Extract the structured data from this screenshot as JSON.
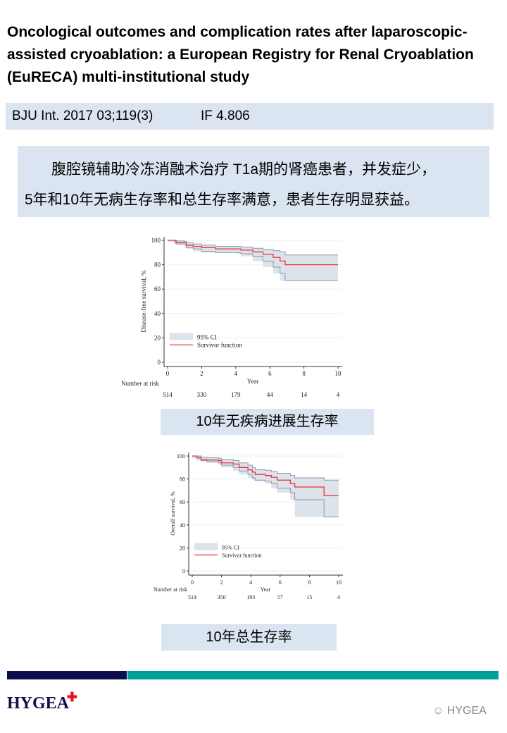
{
  "title": "Oncological outcomes and complication rates after laparoscopic-assisted cryoablation: a European Registry for Renal Cryoablation (EuRECA) multi-institutional study",
  "citation": {
    "journal": "BJU Int. 2017 03;119(3)",
    "impact_factor": "IF 4.806"
  },
  "summary": {
    "line1": "腹腔镜辅助冷冻消融术治疗 T1a期的肾癌患者，并发症少，",
    "line2": "5年和10年无病生存率和总生存率满意，患者生存明显获益。"
  },
  "chart_data": [
    {
      "type": "line",
      "ylabel": "Disease-free survival, %",
      "xlabel": "Year",
      "xlim": [
        0,
        10
      ],
      "ylim": [
        0,
        100
      ],
      "xticks": [
        "0",
        "2",
        "4",
        "6",
        "8",
        "10"
      ],
      "yticks": [
        "0",
        "20",
        "40",
        "60",
        "80",
        "100"
      ],
      "legend": {
        "ci": "95% CI",
        "line": "Survivor function",
        "placement": "bottom-left"
      },
      "risk_label": "Number at risk",
      "risk": [
        "514",
        "330",
        "179",
        "44",
        "14",
        "4"
      ],
      "colors": {
        "line": "#e8323c",
        "band": "#dde3ea",
        "band_edge": "#8a9aaa"
      },
      "x": [
        0,
        0.4,
        0.5,
        1,
        1.1,
        1.5,
        2,
        2.8,
        4,
        4.3,
        5,
        5.6,
        6.2,
        6.6,
        6.9,
        10
      ],
      "survival": [
        100,
        100,
        98,
        98,
        96,
        95,
        94,
        93,
        93,
        92,
        90.5,
        88.5,
        86,
        83,
        80,
        80
      ],
      "upper": [
        100,
        100,
        99.5,
        99,
        98,
        97,
        96,
        95,
        95,
        94.5,
        93.5,
        92.5,
        91.5,
        90.5,
        88,
        88
      ],
      "lower": [
        100,
        99,
        97,
        96.5,
        94,
        93,
        91,
        90,
        90,
        89,
        87,
        83,
        78,
        73,
        67,
        67
      ]
    },
    {
      "type": "line",
      "ylabel": "Overall survival, %",
      "xlabel": "Year",
      "xlim": [
        0,
        10
      ],
      "ylim": [
        0,
        100
      ],
      "xticks": [
        "0",
        "2",
        "4",
        "6",
        "8",
        "10"
      ],
      "yticks": [
        "0",
        "20",
        "40",
        "60",
        "80",
        "100"
      ],
      "legend": {
        "ci": "95% CI",
        "line": "Survivor function",
        "placement": "bottom-left"
      },
      "risk_label": "Number at risk",
      "risk": [
        "514",
        "350",
        "193",
        "57",
        "15",
        "4"
      ],
      "colors": {
        "line": "#e8323c",
        "band": "#dde3ea",
        "band_edge": "#8a9aaa"
      },
      "x": [
        0,
        0.3,
        0.6,
        1,
        1.8,
        2,
        2.8,
        3.2,
        3.8,
        4.1,
        4.3,
        5,
        5.4,
        5.8,
        6.7,
        7,
        9,
        10
      ],
      "survival": [
        100,
        99,
        97,
        96.5,
        96,
        94,
        93,
        90,
        88,
        86,
        84,
        83,
        81.5,
        79,
        76,
        73,
        65.5,
        65.5
      ],
      "upper": [
        100,
        100,
        99,
        98.5,
        98,
        97,
        96,
        94,
        92,
        90,
        88,
        87.5,
        86.5,
        85,
        83,
        81,
        79,
        79
      ],
      "lower": [
        100,
        98,
        96,
        95,
        94,
        92,
        90,
        87,
        84,
        81,
        79,
        78,
        76,
        72,
        68,
        62,
        47,
        47
      ]
    }
  ],
  "captions": [
    "10年无疾病进展生存率",
    "10年总生存率"
  ],
  "footer": {
    "logo": "HYGEA",
    "watermark": "HYGEA"
  }
}
